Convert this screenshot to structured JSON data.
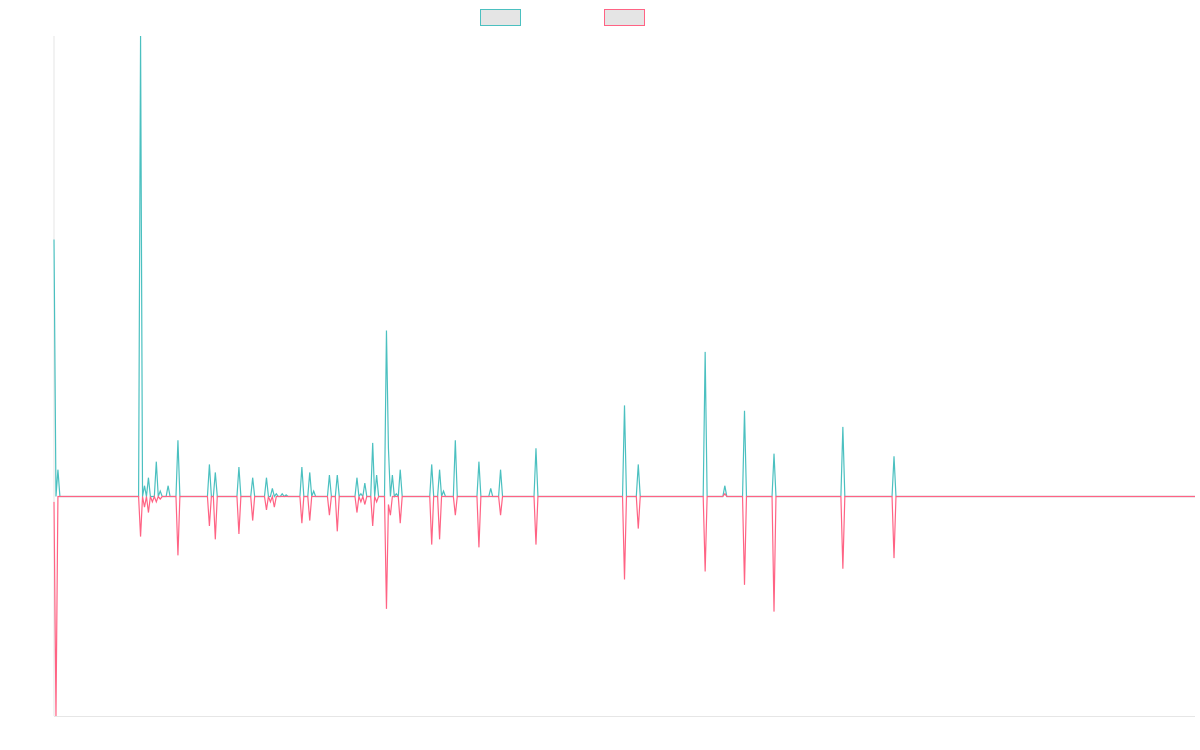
{
  "chart_data": {
    "type": "line",
    "title": "",
    "xlabel": "",
    "ylabel": "",
    "grid": false,
    "legend_position": "top-center",
    "x": [
      0,
      1,
      2,
      3,
      4,
      5,
      6,
      7,
      8,
      9,
      10,
      11,
      12,
      13,
      14,
      15,
      16,
      17,
      18,
      19,
      20,
      21,
      22,
      23,
      24,
      25,
      26,
      27,
      28,
      29,
      30,
      31,
      32,
      33,
      34,
      35,
      36,
      37,
      38,
      39,
      40,
      41,
      42,
      43,
      44,
      45,
      46,
      47,
      48,
      49,
      50,
      51,
      52,
      53,
      54,
      55,
      56,
      57,
      58,
      59,
      60,
      61,
      62,
      63,
      64,
      65,
      66,
      67,
      68,
      69,
      70,
      71,
      72,
      73,
      74,
      75,
      76,
      77,
      78,
      79,
      80,
      81,
      82,
      83,
      84,
      85,
      86,
      87,
      88,
      89,
      90,
      91,
      92,
      93,
      94,
      95,
      96,
      97,
      98,
      99,
      100,
      101,
      102,
      103,
      104,
      105,
      106,
      107,
      108,
      109,
      110,
      111,
      112,
      113,
      114,
      115,
      116,
      117,
      118,
      119,
      120,
      121,
      122,
      123,
      124,
      125,
      126,
      127,
      128,
      129,
      130,
      131,
      132,
      133,
      134,
      135,
      136,
      137,
      138,
      139,
      140,
      141,
      142,
      143,
      144,
      145,
      146,
      147,
      148,
      149,
      150,
      151,
      152,
      153,
      154,
      155,
      156,
      157,
      158,
      159,
      160,
      161,
      162,
      163,
      164,
      165,
      166,
      167,
      168,
      169,
      170,
      171,
      172,
      173,
      174,
      175,
      176,
      177,
      178,
      179,
      180,
      181,
      182,
      183,
      184,
      185,
      186,
      187,
      188,
      189,
      190,
      191,
      192,
      193,
      194,
      195,
      196,
      197,
      198,
      199,
      200,
      201,
      202,
      203,
      204,
      205,
      206,
      207,
      208,
      209,
      210,
      211,
      212,
      213,
      214,
      215,
      216,
      217,
      218,
      219,
      220,
      221,
      222,
      223,
      224,
      225,
      226,
      227,
      228,
      229,
      230,
      231,
      232,
      233,
      234,
      235,
      236,
      237,
      238,
      239,
      240,
      241,
      242,
      243,
      244,
      245,
      246,
      247,
      248,
      249,
      250,
      251,
      252,
      253,
      254,
      255,
      256,
      257,
      258,
      259,
      260,
      261,
      262,
      263,
      264,
      265,
      266,
      267,
      268,
      269,
      270,
      271,
      272,
      273,
      274,
      275,
      276,
      277,
      278,
      279,
      280,
      281,
      282,
      283,
      284,
      285,
      286,
      287,
      288,
      289,
      290,
      291,
      292,
      293,
      294,
      295,
      296,
      297,
      298,
      299,
      300,
      301,
      302,
      303,
      304,
      305,
      306,
      307,
      308,
      309,
      310,
      311,
      312,
      313,
      314,
      315,
      316,
      317,
      318,
      319,
      320,
      321,
      322,
      323,
      324,
      325,
      326,
      327,
      328,
      329,
      330,
      331,
      332,
      333,
      334,
      335,
      336,
      337,
      338,
      339,
      340,
      341,
      342,
      343,
      344,
      345,
      346,
      347,
      348,
      349,
      350,
      351,
      352,
      353,
      354,
      355,
      356,
      357,
      358,
      359,
      360,
      361,
      362,
      363,
      364,
      365,
      366,
      367,
      368,
      369,
      370,
      371,
      372,
      373,
      374,
      375,
      376,
      377,
      378,
      379,
      380,
      381,
      382,
      383,
      384,
      385,
      386,
      387,
      388,
      389,
      390,
      391,
      392,
      393,
      394,
      395,
      396,
      397,
      398,
      399,
      400,
      401,
      402,
      403,
      404,
      405,
      406,
      407,
      408,
      409,
      410,
      411,
      412,
      413,
      414,
      415,
      416,
      417,
      418,
      419,
      420,
      421,
      422,
      423,
      424,
      425,
      426,
      427,
      428,
      429,
      430,
      431,
      432,
      433,
      434,
      435,
      436,
      437,
      438,
      439,
      440,
      441,
      442,
      443,
      444,
      445,
      446,
      447,
      448,
      449,
      450,
      451,
      452,
      453,
      454,
      455,
      456,
      457,
      458,
      459,
      460,
      461,
      462,
      463,
      464,
      465,
      466,
      467,
      468,
      469,
      470,
      471,
      472,
      473,
      474,
      475,
      476,
      477,
      478,
      479,
      480,
      481,
      482,
      483,
      484,
      485,
      486,
      487,
      488,
      489,
      490,
      491,
      492,
      493,
      494,
      495,
      496,
      497,
      498,
      499,
      500,
      501,
      502,
      503,
      504,
      505,
      506,
      507,
      508,
      509,
      510,
      511,
      512,
      513,
      514,
      515,
      516,
      517,
      518,
      519,
      520,
      521,
      522,
      523,
      524,
      525,
      526,
      527,
      528,
      529,
      530,
      531,
      532,
      533,
      534,
      535,
      536,
      537,
      538,
      539,
      540,
      541,
      542,
      543,
      544,
      545,
      546,
      547,
      548,
      549,
      550,
      551,
      552,
      553,
      554,
      555,
      556,
      557,
      558,
      559,
      560,
      561,
      562,
      563,
      564,
      565,
      566,
      567,
      568,
      569,
      570,
      571,
      572,
      573,
      574,
      575,
      576,
      577,
      578,
      579,
      580
    ],
    "ylim": [
      -4.1,
      8.6
    ],
    "series": [
      {
        "name": "",
        "color": "#4bc0c0",
        "fill": "#e5e5e5",
        "spikes": [
          [
            0,
            4.8
          ],
          [
            2,
            0.5
          ],
          [
            3,
            0
          ],
          [
            43,
            0
          ],
          [
            44,
            8.6
          ],
          [
            46,
            0.2
          ],
          [
            48,
            0.35
          ],
          [
            50,
            0
          ],
          [
            52,
            0.65
          ],
          [
            54,
            0.1
          ],
          [
            56,
            0
          ],
          [
            58,
            0.2
          ],
          [
            60,
            0
          ],
          [
            63,
            1.05
          ],
          [
            64,
            0
          ],
          [
            79,
            0.6
          ],
          [
            80,
            0
          ],
          [
            82,
            0.45
          ],
          [
            84,
            0
          ],
          [
            94,
            0.55
          ],
          [
            96,
            0
          ],
          [
            101,
            0.35
          ],
          [
            102,
            0
          ],
          [
            108,
            0.35
          ],
          [
            109,
            0
          ],
          [
            111,
            0.15
          ],
          [
            113,
            0.05
          ],
          [
            116,
            0.05
          ],
          [
            118,
            0.03
          ],
          [
            126,
            0.55
          ],
          [
            128,
            0
          ],
          [
            130,
            0.45
          ],
          [
            132,
            0.1
          ],
          [
            140,
            0.4
          ],
          [
            142,
            0
          ],
          [
            144,
            0.4
          ],
          [
            146,
            0
          ],
          [
            154,
            0.35
          ],
          [
            156,
            0.05
          ],
          [
            158,
            0.25
          ],
          [
            160,
            0
          ],
          [
            162,
            1.0
          ],
          [
            164,
            0.4
          ],
          [
            167,
            0
          ],
          [
            169,
            3.1
          ],
          [
            170,
            0.9
          ],
          [
            171,
            0
          ],
          [
            172,
            0.4
          ],
          [
            174,
            0.05
          ],
          [
            176,
            0.5
          ],
          [
            178,
            0
          ],
          [
            192,
            0.6
          ],
          [
            194,
            0
          ],
          [
            196,
            0.5
          ],
          [
            198,
            0.1
          ],
          [
            200,
            0
          ],
          [
            204,
            1.05
          ],
          [
            206,
            0
          ],
          [
            216,
            0.65
          ],
          [
            218,
            0
          ],
          [
            222,
            0.15
          ],
          [
            224,
            0
          ],
          [
            227,
            0.5
          ],
          [
            229,
            0
          ],
          [
            245,
            0.9
          ],
          [
            247,
            0
          ],
          [
            290,
            1.7
          ],
          [
            292,
            0
          ],
          [
            297,
            0.6
          ],
          [
            299,
            0
          ],
          [
            331,
            2.7
          ],
          [
            333,
            0
          ],
          [
            341,
            0.2
          ],
          [
            342,
            0
          ],
          [
            351,
            1.6
          ],
          [
            353,
            0
          ],
          [
            366,
            0.8
          ],
          [
            368,
            0
          ],
          [
            401,
            1.3
          ],
          [
            403,
            0
          ],
          [
            427,
            0.75
          ],
          [
            429,
            0
          ]
        ]
      },
      {
        "name": "",
        "color": "#ff6384",
        "fill": "#e5e5e5",
        "spikes": [
          [
            0,
            -0.1
          ],
          [
            1,
            -4.1
          ],
          [
            3,
            0
          ],
          [
            43,
            0
          ],
          [
            44,
            -0.75
          ],
          [
            46,
            -0.2
          ],
          [
            48,
            -0.3
          ],
          [
            50,
            -0.1
          ],
          [
            52,
            -0.1
          ],
          [
            54,
            -0.05
          ],
          [
            56,
            0
          ],
          [
            60,
            0
          ],
          [
            63,
            -1.1
          ],
          [
            64,
            0
          ],
          [
            79,
            -0.55
          ],
          [
            80,
            0
          ],
          [
            82,
            -0.8
          ],
          [
            84,
            0
          ],
          [
            94,
            -0.7
          ],
          [
            96,
            0
          ],
          [
            101,
            -0.45
          ],
          [
            102,
            0
          ],
          [
            108,
            -0.25
          ],
          [
            110,
            -0.1
          ],
          [
            112,
            -0.2
          ],
          [
            114,
            0
          ],
          [
            126,
            -0.5
          ],
          [
            128,
            0
          ],
          [
            130,
            -0.45
          ],
          [
            132,
            0
          ],
          [
            140,
            -0.35
          ],
          [
            142,
            0
          ],
          [
            144,
            -0.65
          ],
          [
            146,
            0
          ],
          [
            154,
            -0.3
          ],
          [
            156,
            -0.1
          ],
          [
            158,
            -0.15
          ],
          [
            160,
            0
          ],
          [
            162,
            -0.55
          ],
          [
            164,
            -0.1
          ],
          [
            167,
            0
          ],
          [
            169,
            -2.1
          ],
          [
            170,
            -0.15
          ],
          [
            171,
            -0.35
          ],
          [
            174,
            0
          ],
          [
            176,
            -0.5
          ],
          [
            178,
            0
          ],
          [
            192,
            -0.9
          ],
          [
            194,
            0
          ],
          [
            196,
            -0.8
          ],
          [
            198,
            0
          ],
          [
            204,
            -0.35
          ],
          [
            206,
            0
          ],
          [
            216,
            -0.95
          ],
          [
            218,
            0
          ],
          [
            227,
            -0.35
          ],
          [
            229,
            0
          ],
          [
            245,
            -0.9
          ],
          [
            247,
            0
          ],
          [
            290,
            -1.55
          ],
          [
            292,
            0
          ],
          [
            297,
            -0.6
          ],
          [
            299,
            0
          ],
          [
            331,
            -1.4
          ],
          [
            333,
            0
          ],
          [
            341,
            0.05
          ],
          [
            342,
            0
          ],
          [
            351,
            -1.65
          ],
          [
            353,
            0
          ],
          [
            366,
            -2.15
          ],
          [
            368,
            0
          ],
          [
            401,
            -1.35
          ],
          [
            403,
            0
          ],
          [
            427,
            -1.15
          ],
          [
            429,
            0
          ]
        ]
      }
    ]
  }
}
